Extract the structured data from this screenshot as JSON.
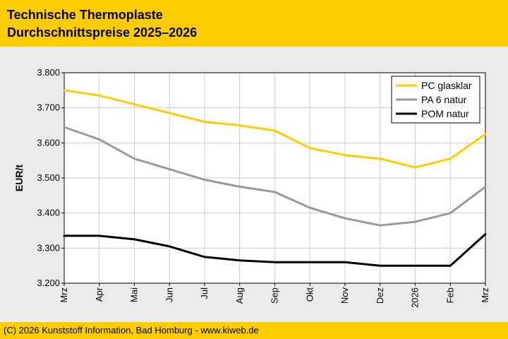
{
  "header": {
    "title_line1": "Technische Thermoplaste",
    "title_line2": "Durchschnittspreise 2025–2026",
    "background_color": "#ffcc00"
  },
  "footer": {
    "text": "(C) 2026 Kunststoff Information, Bad Homburg - www.kiweb.de"
  },
  "chart_data": {
    "type": "line",
    "title": "Technische Thermoplaste Durchschnittspreise 2025–2026",
    "xlabel": "",
    "ylabel": "EUR/t",
    "categories": [
      "Mrz",
      "Apr",
      "Mai",
      "Jun",
      "Jul",
      "Aug",
      "Sep",
      "Okt",
      "Nov",
      "Dez",
      "2026",
      "Feb",
      "Mrz"
    ],
    "ylim": [
      3200,
      3800
    ],
    "yticks": [
      3200,
      3300,
      3400,
      3500,
      3600,
      3700,
      3800
    ],
    "ytick_labels": [
      "3.200",
      "3.300",
      "3.400",
      "3.500",
      "3.600",
      "3.700",
      "3.800"
    ],
    "grid": true,
    "legend_position": "top-right",
    "series": [
      {
        "name": "PC glasklar",
        "color": "#ffcc00",
        "values": [
          3750,
          3735,
          3710,
          3685,
          3660,
          3650,
          3635,
          3585,
          3565,
          3555,
          3530,
          3555,
          3625
        ]
      },
      {
        "name": "PA 6 natur",
        "color": "#999999",
        "values": [
          3645,
          3610,
          3555,
          3525,
          3495,
          3475,
          3460,
          3415,
          3385,
          3365,
          3375,
          3400,
          3475
        ]
      },
      {
        "name": "POM natur",
        "color": "#000000",
        "values": [
          3335,
          3335,
          3325,
          3305,
          3275,
          3265,
          3260,
          3260,
          3260,
          3250,
          3250,
          3250,
          3340
        ]
      }
    ]
  }
}
